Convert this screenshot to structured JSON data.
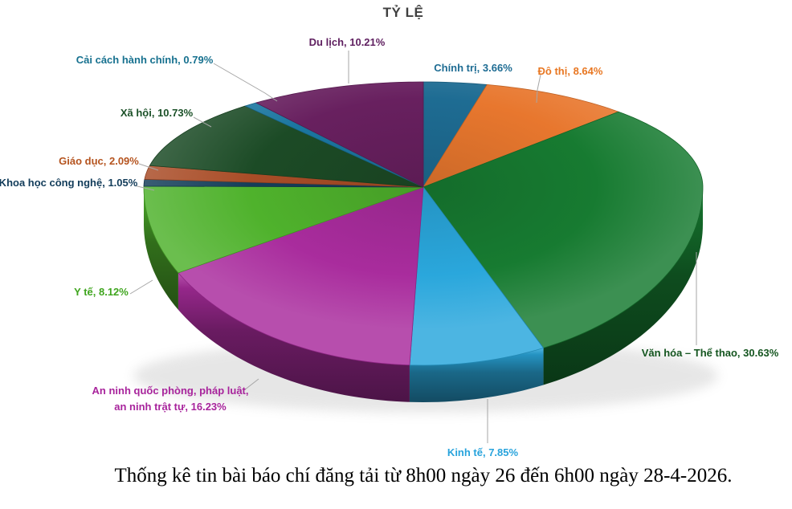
{
  "title": "TỶ LỆ",
  "caption": "Thống kê tin bài báo chí đăng tải từ 8h00 ngày 26 đến 6h00 ngày 28-4-2026.",
  "colors": {
    "title_color": "#3F3F3F",
    "caption_color": "#000000",
    "leader_line_color": "#A6A6A6",
    "background": "#FFFFFF"
  },
  "chart_data": {
    "type": "pie",
    "style": "3d",
    "title": "TỶ LỆ",
    "unit": "%",
    "total": 100,
    "start_angle_deg": 0,
    "direction": "clockwise",
    "legend": "none",
    "series": [
      {
        "label": "Chính trị",
        "value": 3.66,
        "display_lines": [
          "Chính trị, 3.66%"
        ],
        "color": "#1E6C93",
        "label_color": "#1E6C93"
      },
      {
        "label": "Đô thị",
        "value": 8.64,
        "display_lines": [
          "Đô thị, 8.64%"
        ],
        "color": "#E8772E",
        "label_color": "#E87722"
      },
      {
        "label": "Văn hóa – Thể thao",
        "value": 30.63,
        "display_lines": [
          "Văn hóa – Thể thao, 30.63%"
        ],
        "color": "#177B31",
        "label_color": "#14551F"
      },
      {
        "label": "Kinh tế",
        "value": 7.85,
        "display_lines": [
          "Kinh tế, 7.85%"
        ],
        "color": "#2AA7DC",
        "label_color": "#27A3DC"
      },
      {
        "label": "An ninh quốc phòng, pháp luật, an ninh trật tự",
        "value": 16.23,
        "display_lines": [
          "An ninh quốc phòng, pháp luật,",
          "an ninh trật tự, 16.23%"
        ],
        "color": "#A92C9D",
        "label_color": "#A8249C"
      },
      {
        "label": "Y tế",
        "value": 8.12,
        "display_lines": [
          "Y tế, 8.12%"
        ],
        "color": "#4FB22C",
        "label_color": "#3FA51E"
      },
      {
        "label": "Khoa học công nghệ",
        "value": 1.05,
        "display_lines": [
          "Khoa học công nghệ, 1.05%"
        ],
        "color": "#153E59",
        "label_color": "#123C5A"
      },
      {
        "label": "Giáo dục",
        "value": 2.09,
        "display_lines": [
          "Giáo dục, 2.09%"
        ],
        "color": "#A94D27",
        "label_color": "#B5541F"
      },
      {
        "label": "Xã hội",
        "value": 10.73,
        "display_lines": [
          "Xã hội, 10.73%"
        ],
        "color": "#1C4B26",
        "label_color": "#1B5128"
      },
      {
        "label": "Cải cách hành chính",
        "value": 0.79,
        "display_lines": [
          "Cải cách hành chính, 0.79%"
        ],
        "color": "#1B76A0",
        "label_color": "#17718F"
      },
      {
        "label": "Du lịch",
        "value": 10.21,
        "display_lines": [
          "Du lịch, 10.21%"
        ],
        "color": "#68205F",
        "label_color": "#5F2060"
      }
    ]
  }
}
